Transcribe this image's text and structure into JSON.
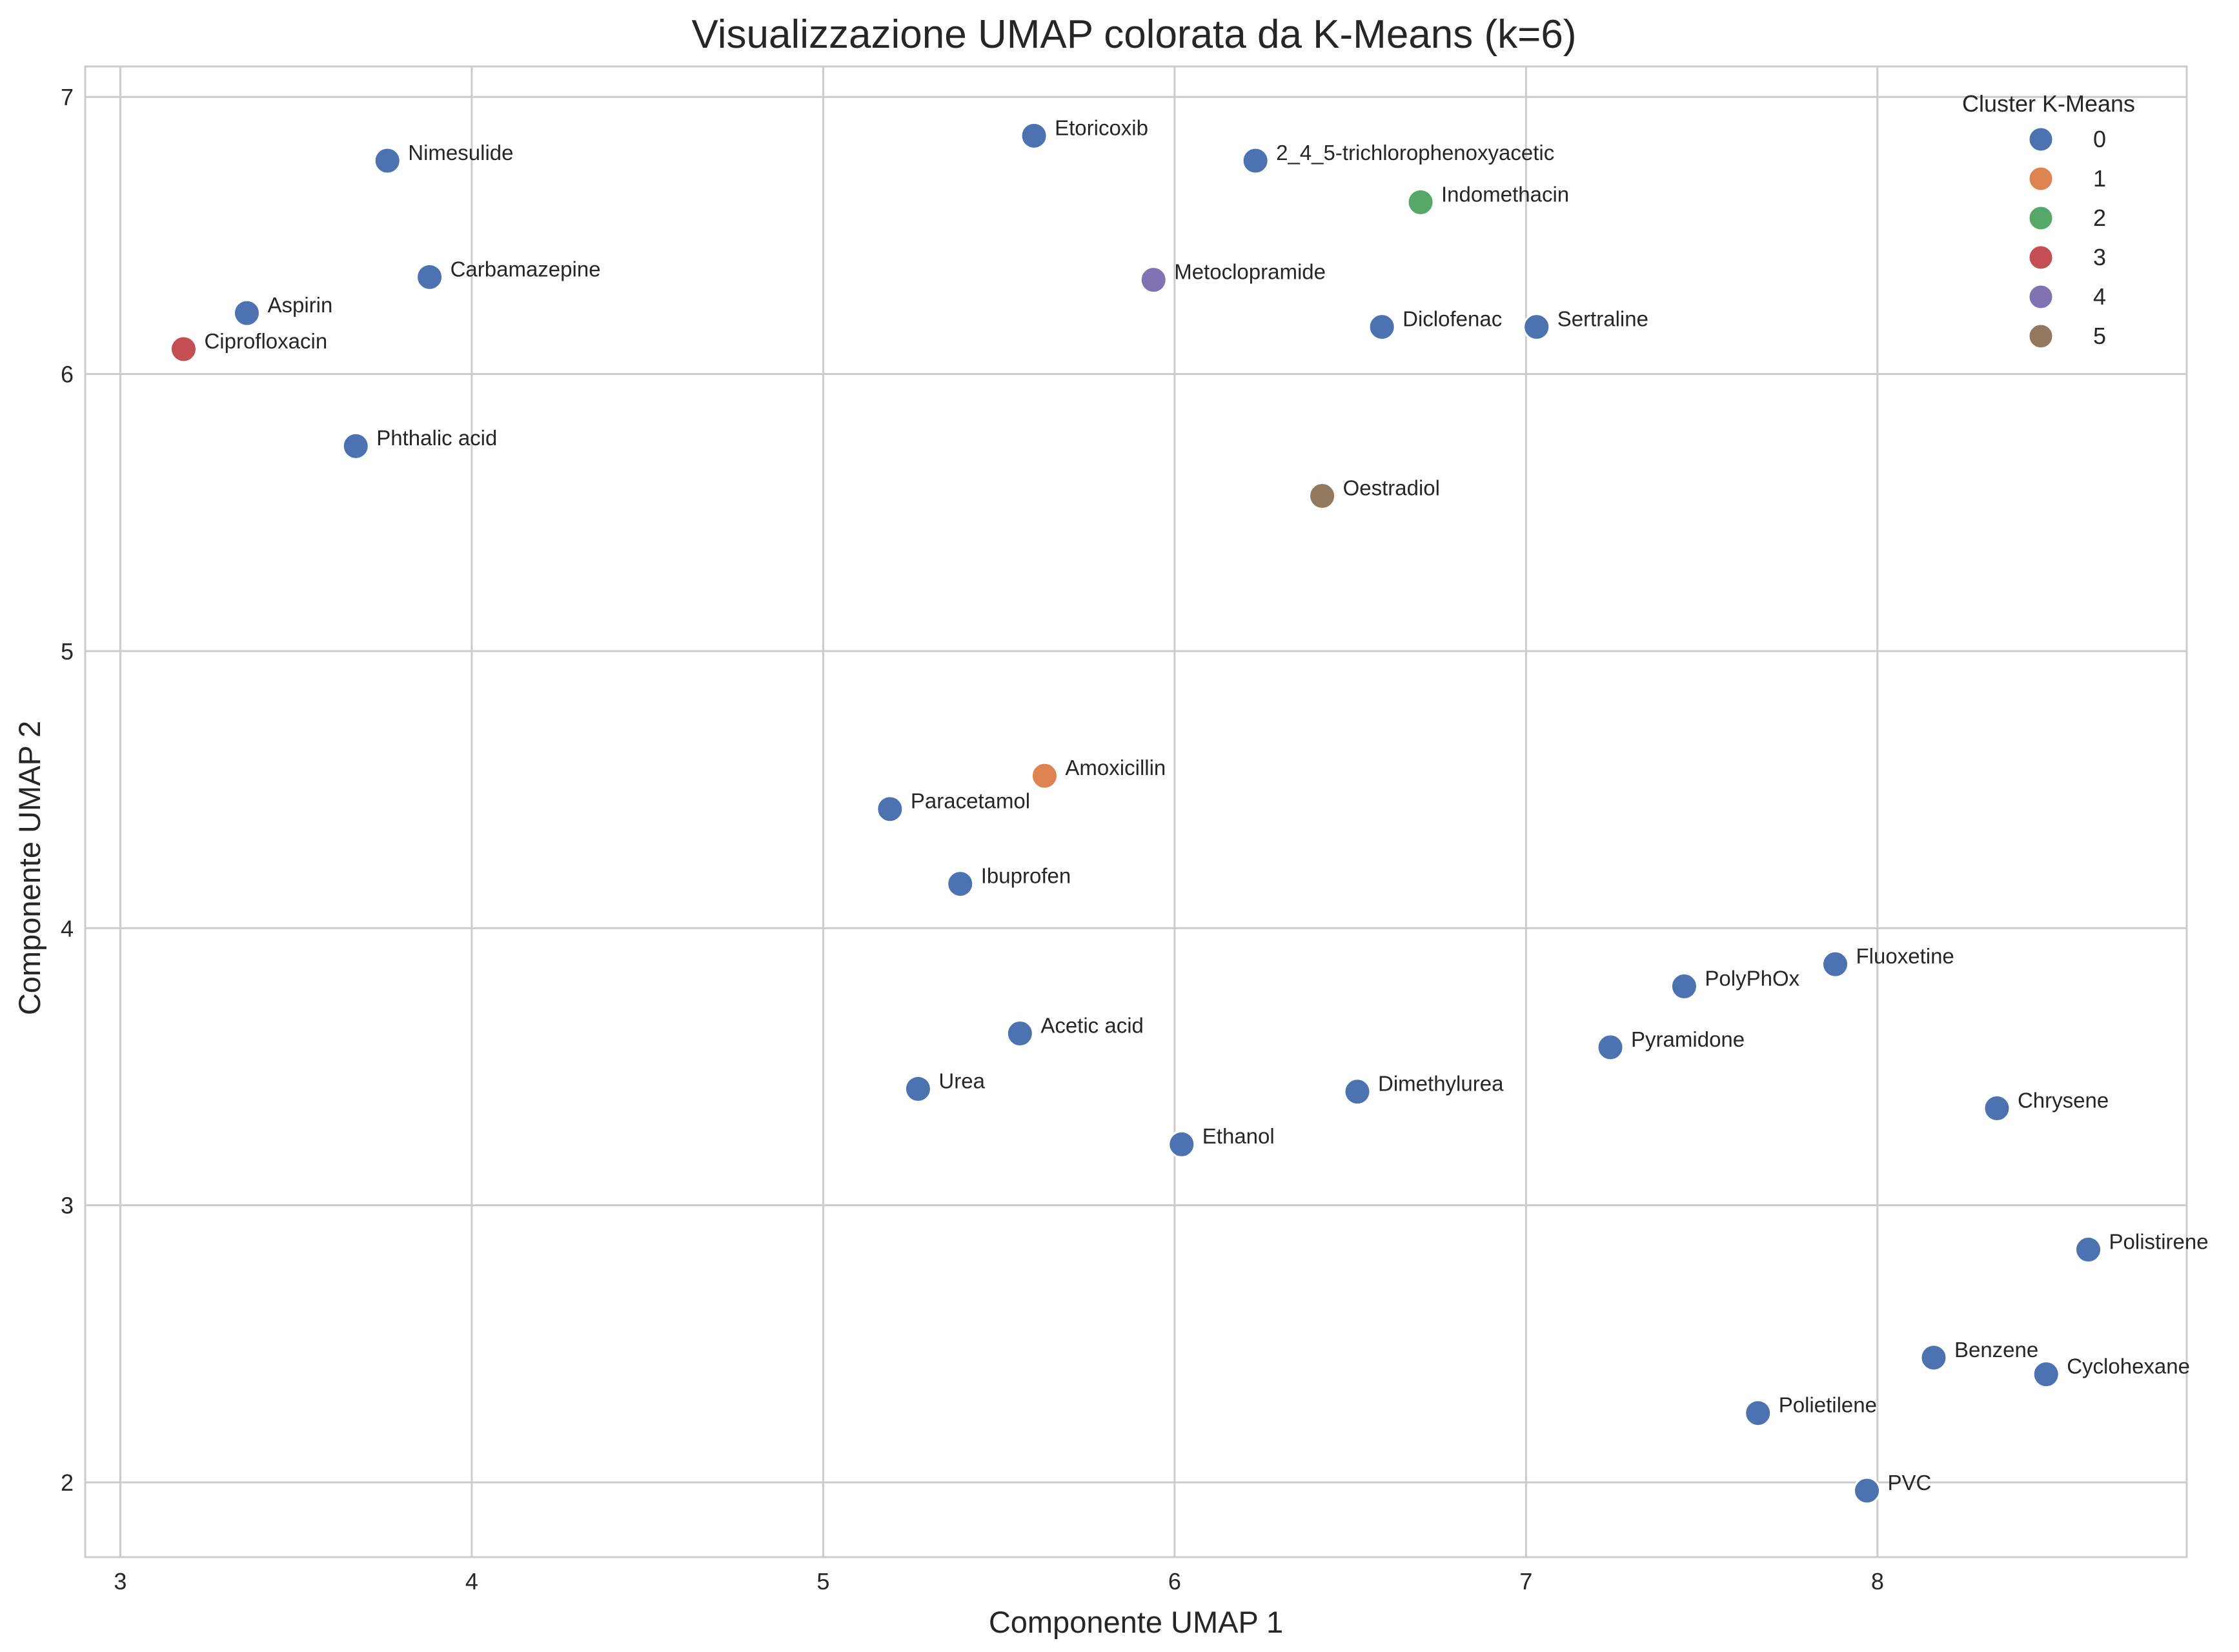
{
  "chart_data": {
    "type": "scatter",
    "title": "Visualizzazione UMAP colorata da K-Means (k=6)",
    "xlabel": "Componente UMAP 1",
    "ylabel": "Componente UMAP 2",
    "xlim": [
      2.9,
      8.88
    ],
    "ylim": [
      1.73,
      7.11
    ],
    "xticks": [
      3,
      4,
      5,
      6,
      7,
      8
    ],
    "yticks": [
      2,
      3,
      4,
      5,
      6,
      7
    ],
    "grid": true,
    "legend": {
      "title": "Cluster K-Means",
      "position": "top-right",
      "entries": [
        "0",
        "1",
        "2",
        "3",
        "4",
        "5"
      ]
    },
    "colors": {
      "0": "#4c72b0",
      "1": "#dd8452",
      "2": "#55a868",
      "3": "#c44e52",
      "4": "#8172b3",
      "5": "#937860"
    },
    "points": [
      {
        "label": "Nimesulide",
        "x": 3.76,
        "y": 6.77,
        "cluster": "0"
      },
      {
        "label": "Etoricoxib",
        "x": 5.6,
        "y": 6.86,
        "cluster": "0"
      },
      {
        "label": "2_4_5-trichlorophenoxyacetic",
        "x": 6.23,
        "y": 6.77,
        "cluster": "0"
      },
      {
        "label": "Indomethacin",
        "x": 6.7,
        "y": 6.62,
        "cluster": "2"
      },
      {
        "label": "Carbamazepine",
        "x": 3.88,
        "y": 6.35,
        "cluster": "0"
      },
      {
        "label": "Metoclopramide",
        "x": 5.94,
        "y": 6.34,
        "cluster": "4"
      },
      {
        "label": "Aspirin",
        "x": 3.36,
        "y": 6.22,
        "cluster": "0"
      },
      {
        "label": "Ciprofloxacin",
        "x": 3.18,
        "y": 6.09,
        "cluster": "3"
      },
      {
        "label": "Diclofenac",
        "x": 6.59,
        "y": 6.17,
        "cluster": "0"
      },
      {
        "label": "Sertraline",
        "x": 7.03,
        "y": 6.17,
        "cluster": "0"
      },
      {
        "label": "Phthalic acid",
        "x": 3.67,
        "y": 5.74,
        "cluster": "0"
      },
      {
        "label": "Oestradiol",
        "x": 6.42,
        "y": 5.56,
        "cluster": "5"
      },
      {
        "label": "Amoxicillin",
        "x": 5.63,
        "y": 4.55,
        "cluster": "1"
      },
      {
        "label": "Paracetamol",
        "x": 5.19,
        "y": 4.43,
        "cluster": "0"
      },
      {
        "label": "Ibuprofen",
        "x": 5.39,
        "y": 4.16,
        "cluster": "0"
      },
      {
        "label": "Fluoxetine",
        "x": 7.88,
        "y": 3.87,
        "cluster": "0"
      },
      {
        "label": "PolyPhOx",
        "x": 7.45,
        "y": 3.79,
        "cluster": "0"
      },
      {
        "label": "Acetic acid",
        "x": 5.56,
        "y": 3.62,
        "cluster": "0"
      },
      {
        "label": "Pyramidone",
        "x": 7.24,
        "y": 3.57,
        "cluster": "0"
      },
      {
        "label": "Urea",
        "x": 5.27,
        "y": 3.42,
        "cluster": "0"
      },
      {
        "label": "Dimethylurea",
        "x": 6.52,
        "y": 3.41,
        "cluster": "0"
      },
      {
        "label": "Chrysene",
        "x": 8.34,
        "y": 3.35,
        "cluster": "0"
      },
      {
        "label": "Ethanol",
        "x": 6.02,
        "y": 3.22,
        "cluster": "0"
      },
      {
        "label": "Polistirene",
        "x": 8.6,
        "y": 2.84,
        "cluster": "0"
      },
      {
        "label": "Benzene",
        "x": 8.16,
        "y": 2.45,
        "cluster": "0"
      },
      {
        "label": "Cyclohexane",
        "x": 8.48,
        "y": 2.39,
        "cluster": "0"
      },
      {
        "label": "Polietilene",
        "x": 7.66,
        "y": 2.25,
        "cluster": "0"
      },
      {
        "label": "PVC",
        "x": 7.97,
        "y": 1.97,
        "cluster": "0"
      }
    ]
  }
}
